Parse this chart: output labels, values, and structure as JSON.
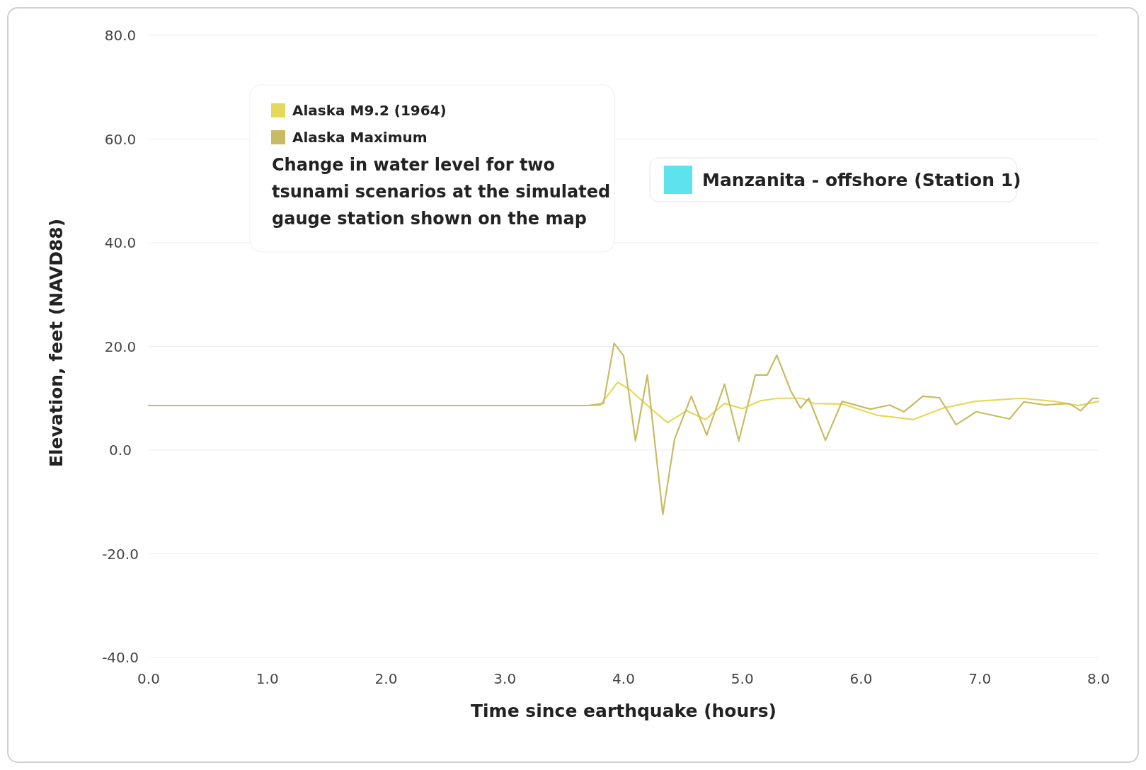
{
  "chart_data": {
    "type": "line",
    "xlabel": "Time since earthquake (hours)",
    "ylabel": "Elevation, feet (NAVD88)",
    "xlim": [
      0,
      8
    ],
    "ylim": [
      -40,
      80
    ],
    "xticks": [
      {
        "value": 0,
        "label": "0.0"
      },
      {
        "value": 1,
        "label": "1.0"
      },
      {
        "value": 2,
        "label": "2.0"
      },
      {
        "value": 3,
        "label": "3.0"
      },
      {
        "value": 4,
        "label": "4.0"
      },
      {
        "value": 5,
        "label": "5.0"
      },
      {
        "value": 6,
        "label": "6.0"
      },
      {
        "value": 7,
        "label": "7.0"
      },
      {
        "value": 8,
        "label": "8.0"
      }
    ],
    "yticks": [
      {
        "value": -40,
        "label": "-40.0"
      },
      {
        "value": -20,
        "label": "-20.0"
      },
      {
        "value": 0,
        "label": "0.0"
      },
      {
        "value": 20,
        "label": "20.0"
      },
      {
        "value": 40,
        "label": "40.0"
      },
      {
        "value": 60,
        "label": "60.0"
      },
      {
        "value": 80,
        "label": "80.0"
      }
    ],
    "grid": "y",
    "legend": "top left",
    "marker": "none",
    "line_style": "solid",
    "annotations": [
      "Change in water level for two tsunami scenarios at the simulated gauge station shown on the map",
      "Manzanita - offshore (Station 1)"
    ],
    "series": [
      {
        "name": "Alaska M9.2 (1964)",
        "color": "#e6d85a",
        "x": [
          0,
          3.8,
          3.95,
          4.05,
          4.25,
          4.37,
          4.53,
          4.69,
          4.85,
          5.0,
          5.15,
          5.3,
          5.5,
          5.6,
          5.84,
          6.14,
          6.44,
          6.69,
          6.96,
          7.35,
          7.63,
          7.83,
          8.0
        ],
        "values": [
          8.6,
          8.6,
          13.1,
          11.7,
          7.6,
          5.3,
          7.6,
          5.9,
          9,
          8,
          9.5,
          10,
          10,
          9,
          8.9,
          6.7,
          5.9,
          8.1,
          9.4,
          10,
          9.4,
          8.6,
          9.4
        ]
      },
      {
        "name": "Alaska Maximum",
        "color": "#c9bb62",
        "x": [
          0,
          3.7,
          3.83,
          3.92,
          4.0,
          4.1,
          4.2,
          4.33,
          4.43,
          4.57,
          4.7,
          4.85,
          4.97,
          5.11,
          5.21,
          5.29,
          5.41,
          5.49,
          5.56,
          5.7,
          5.84,
          6.08,
          6.24,
          6.36,
          6.52,
          6.66,
          6.8,
          6.97,
          7.25,
          7.37,
          7.55,
          7.75,
          7.85,
          7.95,
          8.0
        ],
        "values": [
          8.6,
          8.6,
          9,
          20.6,
          18.2,
          1.8,
          14.5,
          -12.4,
          2.2,
          10.4,
          2.9,
          12.7,
          1.8,
          14.5,
          14.5,
          18.3,
          11.3,
          8.1,
          10,
          1.9,
          9.4,
          7.9,
          8.7,
          7.4,
          10.4,
          10.1,
          4.9,
          7.4,
          6,
          9.3,
          8.7,
          9,
          7.6,
          10,
          10
        ]
      }
    ]
  }
}
